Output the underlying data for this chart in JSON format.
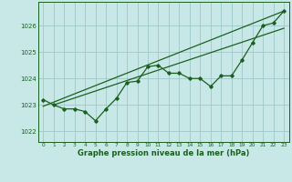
{
  "background_color": "#c8e8e8",
  "plot_bg_color": "#c8e8e8",
  "grid_color": "#a0c8c8",
  "line_color": "#1a6020",
  "xlabel": "Graphe pression niveau de la mer (hPa)",
  "xlim": [
    -0.5,
    23.5
  ],
  "ylim": [
    1021.6,
    1026.9
  ],
  "yticks": [
    1022,
    1023,
    1024,
    1025,
    1026
  ],
  "xticks": [
    0,
    1,
    2,
    3,
    4,
    5,
    6,
    7,
    8,
    9,
    10,
    11,
    12,
    13,
    14,
    15,
    16,
    17,
    18,
    19,
    20,
    21,
    22,
    23
  ],
  "series1": [
    1023.2,
    1023.0,
    1022.85,
    1022.85,
    1022.75,
    1022.4,
    1022.85,
    1023.25,
    1023.85,
    1023.9,
    1024.45,
    1024.5,
    1024.2,
    1024.2,
    1024.0,
    1024.0,
    1023.7,
    1024.1,
    1024.1,
    1024.7,
    1025.35,
    1026.0,
    1026.1,
    1026.55
  ],
  "trend1_x": [
    0,
    23
  ],
  "trend1_y": [
    1022.95,
    1026.55
  ],
  "trend2_x": [
    1,
    23
  ],
  "trend2_y": [
    1023.0,
    1025.9
  ]
}
